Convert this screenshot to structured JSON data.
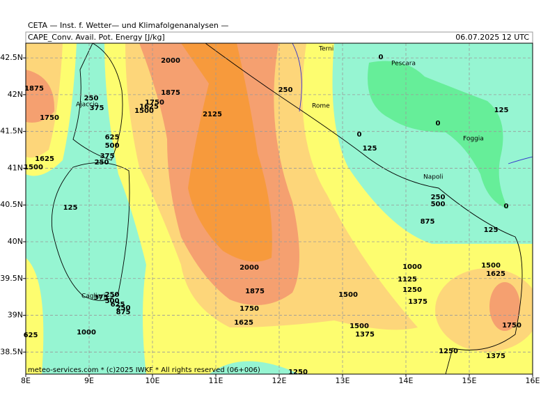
{
  "header": "CETA — Inst. f. Wetter— und Klimafolgenanalysen —",
  "title": "CAPE_Conv. Avail. Pot. Energy [J/kg]",
  "date": "06.07.2025 12 UTC",
  "footer": "meteo-services.com * (c)2025 IWKF * All rights reserved (06+006)",
  "map": {
    "xlim": [
      8,
      16
    ],
    "ylim": [
      38.2,
      42.7
    ],
    "xticks": [
      {
        "value": 8,
        "label": "8E"
      },
      {
        "value": 9,
        "label": "9E"
      },
      {
        "value": 10,
        "label": "10E"
      },
      {
        "value": 11,
        "label": "11E"
      },
      {
        "value": 12,
        "label": "12E"
      },
      {
        "value": 13,
        "label": "13E"
      },
      {
        "value": 14,
        "label": "14E"
      },
      {
        "value": 15,
        "label": "15E"
      },
      {
        "value": 16,
        "label": "16E"
      }
    ],
    "yticks": [
      {
        "value": 38.5,
        "label": "38.5N"
      },
      {
        "value": 39,
        "label": "39N"
      },
      {
        "value": 39.5,
        "label": "39.5N"
      },
      {
        "value": 40,
        "label": "40N"
      },
      {
        "value": 40.5,
        "label": "40.5N"
      },
      {
        "value": 41,
        "label": "41N"
      },
      {
        "value": 41.5,
        "label": "41.5N"
      },
      {
        "value": 42,
        "label": "42N"
      },
      {
        "value": 42.5,
        "label": "42.5N"
      }
    ],
    "grid": true,
    "cities": [
      "Terni",
      "Pescara",
      "Rome",
      "Ajaccio",
      "Foggia",
      "Napoli",
      "Cagliari"
    ],
    "contour_labels": [
      2000,
      1875,
      1750,
      1625,
      1500,
      2125,
      250,
      0,
      1875,
      250,
      375,
      1750,
      625,
      500,
      375,
      250,
      1625,
      1500,
      125,
      0,
      125,
      0,
      125,
      250,
      500,
      875,
      125,
      0,
      2000,
      1875,
      1750,
      1625,
      1500,
      1000,
      1125,
      1250,
      1375,
      1500,
      1625,
      1750,
      1500,
      1375,
      1250,
      1375,
      250,
      375,
      500,
      625,
      250,
      875,
      1000,
      625,
      1250
    ]
  }
}
